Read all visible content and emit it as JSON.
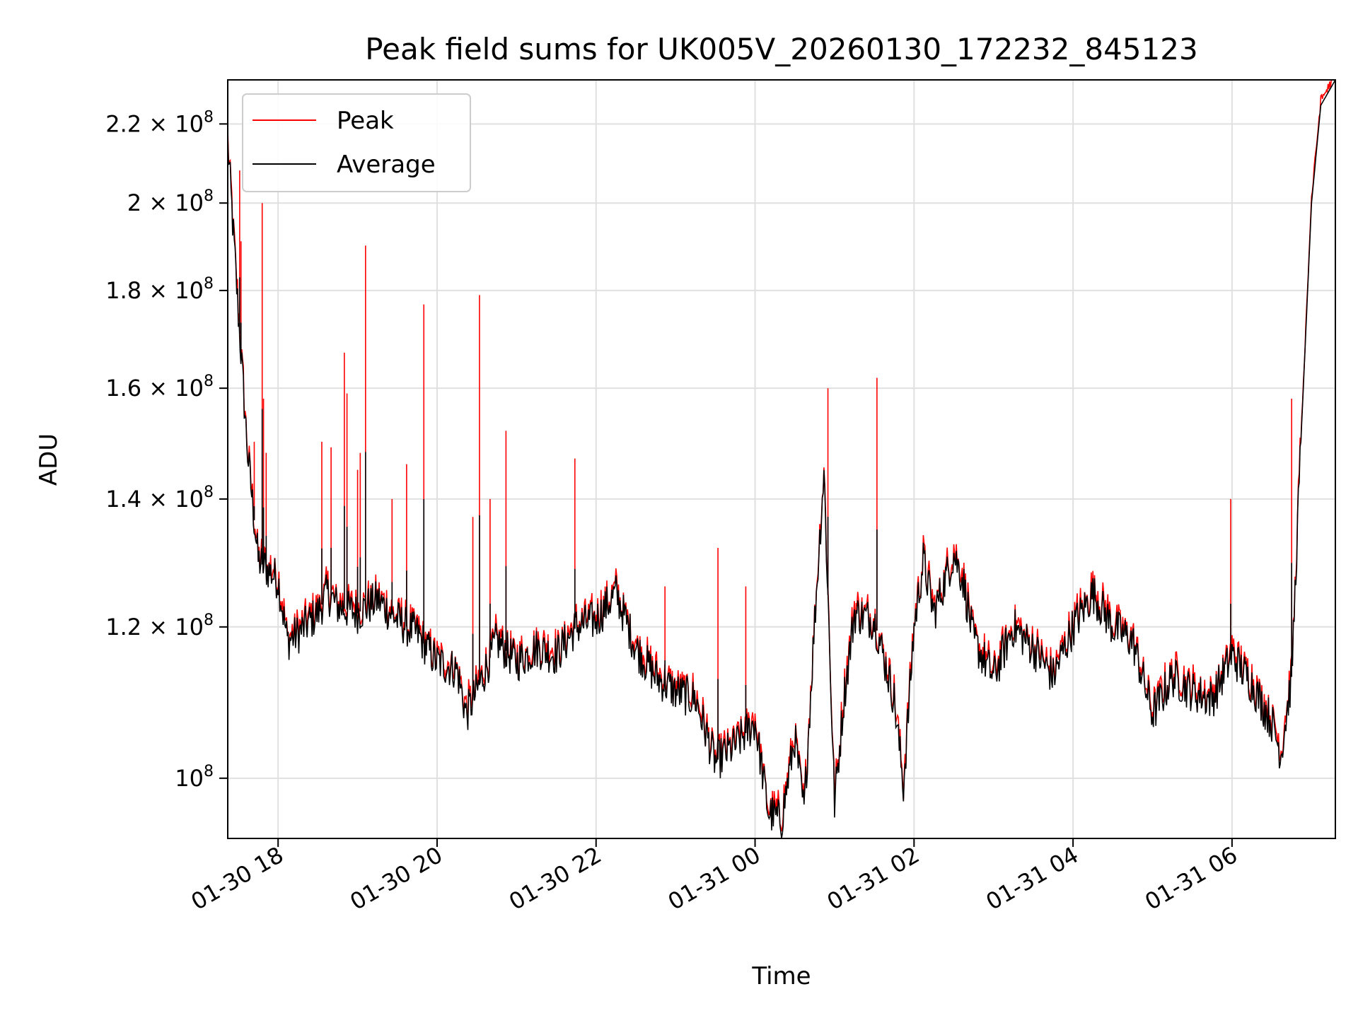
{
  "chart_data": {
    "type": "line",
    "title": "Peak field sums for UK005V_20260130_172232_845123",
    "xlabel": "Time",
    "ylabel": "ADU",
    "y_scale": "log",
    "ylim": [
      93000000,
      232000000
    ],
    "xlim": [
      "2026-01-30 17:22",
      "2026-01-31 07:18"
    ],
    "grid": true,
    "legend_position": "top-left",
    "x_ticks": [
      {
        "t": "2026-01-30 18:00",
        "label": "01-30 18"
      },
      {
        "t": "2026-01-30 20:00",
        "label": "01-30 20"
      },
      {
        "t": "2026-01-30 22:00",
        "label": "01-30 22"
      },
      {
        "t": "2026-01-31 00:00",
        "label": "01-31 00"
      },
      {
        "t": "2026-01-31 02:00",
        "label": "01-31 02"
      },
      {
        "t": "2026-01-31 04:00",
        "label": "01-31 04"
      },
      {
        "t": "2026-01-31 06:00",
        "label": "01-31 06"
      }
    ],
    "y_ticks": [
      {
        "value": 100000000,
        "base": "10",
        "exp": "8"
      },
      {
        "value": 120000000,
        "base": "1.2 × 10",
        "exp": "8"
      },
      {
        "value": 140000000,
        "base": "1.4 × 10",
        "exp": "8"
      },
      {
        "value": 160000000,
        "base": "1.6 × 10",
        "exp": "8"
      },
      {
        "value": 180000000,
        "base": "1.8 × 10",
        "exp": "8"
      },
      {
        "value": 200000000,
        "base": "2 × 10",
        "exp": "8"
      },
      {
        "value": 220000000,
        "base": "2.2 × 10",
        "exp": "8"
      }
    ],
    "series": [
      {
        "name": "Peak",
        "color": "#ff0000"
      },
      {
        "name": "Average",
        "color": "#000000"
      }
    ],
    "x": [
      "2026-01-30 17:22",
      "2026-01-30 17:30",
      "2026-01-30 17:37",
      "2026-01-30 17:45",
      "2026-01-30 18:00",
      "2026-01-30 18:07",
      "2026-01-30 18:15",
      "2026-01-30 18:30",
      "2026-01-30 18:37",
      "2026-01-30 18:45",
      "2026-01-30 19:00",
      "2026-01-30 19:15",
      "2026-01-30 19:30",
      "2026-01-30 19:45",
      "2026-01-30 20:00",
      "2026-01-30 20:15",
      "2026-01-30 20:22",
      "2026-01-30 20:30",
      "2026-01-30 20:45",
      "2026-01-30 21:00",
      "2026-01-30 21:15",
      "2026-01-30 21:30",
      "2026-01-30 21:45",
      "2026-01-30 22:00",
      "2026-01-30 22:15",
      "2026-01-30 22:30",
      "2026-01-30 22:45",
      "2026-01-30 23:00",
      "2026-01-30 23:15",
      "2026-01-30 23:30",
      "2026-01-30 23:45",
      "2026-01-31 00:00",
      "2026-01-31 00:10",
      "2026-01-31 00:20",
      "2026-01-31 00:30",
      "2026-01-31 00:37",
      "2026-01-31 00:45",
      "2026-01-31 00:52",
      "2026-01-31 01:00",
      "2026-01-31 01:07",
      "2026-01-31 01:15",
      "2026-01-31 01:30",
      "2026-01-31 01:45",
      "2026-01-31 01:52",
      "2026-01-31 02:00",
      "2026-01-31 02:07",
      "2026-01-31 02:15",
      "2026-01-31 02:30",
      "2026-01-31 02:37",
      "2026-01-31 02:45",
      "2026-01-31 03:00",
      "2026-01-31 03:15",
      "2026-01-31 03:30",
      "2026-01-31 03:45",
      "2026-01-31 04:00",
      "2026-01-31 04:15",
      "2026-01-31 04:30",
      "2026-01-31 04:45",
      "2026-01-31 05:00",
      "2026-01-31 05:15",
      "2026-01-31 05:30",
      "2026-01-31 05:45",
      "2026-01-31 06:00",
      "2026-01-31 06:15",
      "2026-01-31 06:30",
      "2026-01-31 06:37",
      "2026-01-31 06:45",
      "2026-01-31 06:52",
      "2026-01-31 07:00",
      "2026-01-31 07:07",
      "2026-01-31 07:18"
    ],
    "average": [
      215000000,
      175000000,
      148000000,
      130000000,
      127000000,
      118000000,
      119000000,
      122000000,
      125000000,
      123000000,
      122000000,
      124000000,
      121000000,
      119000000,
      115000000,
      114000000,
      108000000,
      111000000,
      118000000,
      115000000,
      117000000,
      116000000,
      120000000,
      121000000,
      125000000,
      117000000,
      113000000,
      111000000,
      110000000,
      102000000,
      104000000,
      107000000,
      96000000,
      95000000,
      105000000,
      96000000,
      121000000,
      145000000,
      97000000,
      110000000,
      122000000,
      121000000,
      110000000,
      99000000,
      120000000,
      130000000,
      122000000,
      131000000,
      127000000,
      118000000,
      113000000,
      120000000,
      117000000,
      113000000,
      120000000,
      125000000,
      120000000,
      118000000,
      108000000,
      113000000,
      111000000,
      110000000,
      116000000,
      112000000,
      107000000,
      103000000,
      113000000,
      150000000,
      200000000,
      225000000,
      232000000
    ],
    "peak_spikes": [
      {
        "t": "2026-01-30 17:31",
        "value": 208000000
      },
      {
        "t": "2026-01-30 17:32",
        "value": 191000000
      },
      {
        "t": "2026-01-30 17:48",
        "value": 200000000
      },
      {
        "t": "2026-01-30 17:49",
        "value": 158000000
      },
      {
        "t": "2026-01-30 17:42",
        "value": 150000000
      },
      {
        "t": "2026-01-30 17:51",
        "value": 148000000
      },
      {
        "t": "2026-01-30 18:33",
        "value": 150000000
      },
      {
        "t": "2026-01-30 18:40",
        "value": 149000000
      },
      {
        "t": "2026-01-30 18:50",
        "value": 167000000
      },
      {
        "t": "2026-01-30 18:52",
        "value": 159000000
      },
      {
        "t": "2026-01-30 19:00",
        "value": 145000000
      },
      {
        "t": "2026-01-30 19:02",
        "value": 148000000
      },
      {
        "t": "2026-01-30 19:06",
        "value": 190000000
      },
      {
        "t": "2026-01-30 19:26",
        "value": 140000000
      },
      {
        "t": "2026-01-30 19:37",
        "value": 146000000
      },
      {
        "t": "2026-01-30 19:50",
        "value": 177000000
      },
      {
        "t": "2026-01-30 20:27",
        "value": 137000000
      },
      {
        "t": "2026-01-30 20:32",
        "value": 179000000
      },
      {
        "t": "2026-01-30 20:40",
        "value": 140000000
      },
      {
        "t": "2026-01-30 20:52",
        "value": 152000000
      },
      {
        "t": "2026-01-30 21:44",
        "value": 147000000
      },
      {
        "t": "2026-01-30 22:52",
        "value": 126000000
      },
      {
        "t": "2026-01-30 23:32",
        "value": 132000000
      },
      {
        "t": "2026-01-30 23:53",
        "value": 126000000
      },
      {
        "t": "2026-01-31 00:55",
        "value": 160000000
      },
      {
        "t": "2026-01-31 01:32",
        "value": 162000000
      },
      {
        "t": "2026-01-31 05:59",
        "value": 140000000
      },
      {
        "t": "2026-01-31 06:45",
        "value": 158000000
      }
    ]
  }
}
